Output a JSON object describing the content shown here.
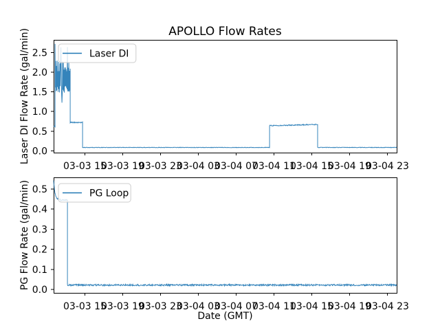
{
  "figure": {
    "title": "APOLLO Flow Rates",
    "xlabel": "Date (GMT)",
    "background_color": "#ffffff",
    "text_color": "#000000",
    "axis_color": "#000000"
  },
  "chart_data": [
    {
      "type": "line",
      "name": "laser-di",
      "ylabel": "Laser DI Flow Rate (gal/min)",
      "legend": {
        "label": "Laser DI",
        "position": "upper left"
      },
      "color": "#1f77b4",
      "grid": false,
      "x_unit": "hours since 03-03 00:00 GMT",
      "xlim": [
        11.73,
        48.02
      ],
      "ylim": [
        -0.046,
        2.82
      ],
      "x_ticks": [
        {
          "value": 15,
          "label": "03-03 15"
        },
        {
          "value": 19,
          "label": "03-03 19"
        },
        {
          "value": 23,
          "label": "03-03 23"
        },
        {
          "value": 27,
          "label": "03-04 03"
        },
        {
          "value": 31,
          "label": "03-04 07"
        },
        {
          "value": 35,
          "label": "03-04 11"
        },
        {
          "value": 39,
          "label": "03-04 15"
        },
        {
          "value": 43,
          "label": "03-04 19"
        },
        {
          "value": 47,
          "label": "03-04 23"
        }
      ],
      "y_ticks": [
        0.0,
        0.5,
        1.0,
        1.5,
        2.0,
        2.5
      ],
      "segments": [
        {
          "type": "flat",
          "t0": 11.73,
          "t1": 11.88,
          "v": 0.62,
          "noise": 0.01
        },
        {
          "type": "osc",
          "t0": 11.88,
          "t1": 13.48,
          "lo": 1.45,
          "hi": 2.32,
          "start": 2.72,
          "peak_max": 2.7,
          "dip_min": 1.1
        },
        {
          "type": "flat",
          "t0": 13.48,
          "t1": 14.79,
          "v": 0.72,
          "noise": 0.012
        },
        {
          "type": "flat",
          "t0": 14.79,
          "t1": 34.57,
          "v": 0.085,
          "noise": 0.006
        },
        {
          "type": "ramp",
          "t0": 34.57,
          "t1": 39.66,
          "v0": 0.64,
          "v1": 0.67,
          "noise": 0.012
        },
        {
          "type": "flat",
          "t0": 39.66,
          "t1": 48.02,
          "v": 0.085,
          "noise": 0.006
        }
      ]
    },
    {
      "type": "line",
      "name": "pg-loop",
      "ylabel": "PG Flow Rate (gal/min)",
      "legend": {
        "label": "PG Loop",
        "position": "upper left"
      },
      "color": "#1f77b4",
      "grid": false,
      "x_unit": "hours since 03-03 00:00 GMT",
      "xlim": [
        11.73,
        48.02
      ],
      "ylim": [
        -0.017,
        0.558
      ],
      "x_ticks": [
        {
          "value": 15,
          "label": "03-03 15"
        },
        {
          "value": 19,
          "label": "03-03 19"
        },
        {
          "value": 23,
          "label": "03-03 23"
        },
        {
          "value": 27,
          "label": "03-04 03"
        },
        {
          "value": 31,
          "label": "03-04 07"
        },
        {
          "value": 35,
          "label": "03-04 11"
        },
        {
          "value": 39,
          "label": "03-04 15"
        },
        {
          "value": 43,
          "label": "03-04 19"
        },
        {
          "value": 47,
          "label": "03-04 23"
        }
      ],
      "y_ticks": [
        0.0,
        0.1,
        0.2,
        0.3,
        0.4,
        0.5
      ],
      "segments": [
        {
          "type": "decay",
          "t0": 11.73,
          "t1": 12.46,
          "v0": 0.54,
          "v1": 0.447,
          "noise": 0.003
        },
        {
          "type": "flat",
          "t0": 12.46,
          "t1": 13.19,
          "v": 0.445,
          "noise": 0.003
        },
        {
          "type": "flat",
          "t0": 13.19,
          "t1": 48.02,
          "v": 0.022,
          "noise": 0.004
        }
      ]
    }
  ]
}
